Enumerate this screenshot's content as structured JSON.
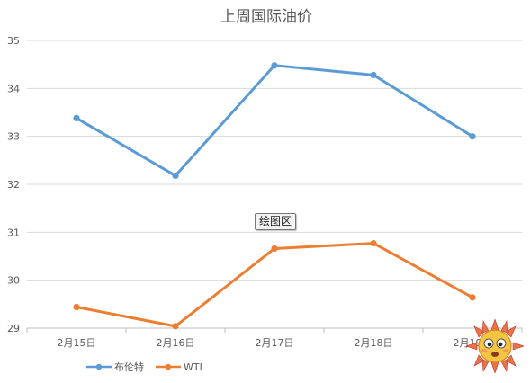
{
  "chart_data": {
    "type": "line",
    "title": "上周国际油价",
    "categories": [
      "2月15日",
      "2月16日",
      "2月17日",
      "2月18日",
      "2月19日"
    ],
    "series": [
      {
        "name": "布伦特",
        "color": "#5b9bd5",
        "values": [
          33.38,
          32.18,
          34.48,
          34.28,
          33.0
        ]
      },
      {
        "name": "WTI",
        "color": "#ed7d31",
        "values": [
          29.44,
          29.04,
          30.66,
          30.77,
          29.64
        ]
      }
    ],
    "ylim": [
      29,
      35
    ],
    "yticks": [
      29,
      30,
      31,
      32,
      33,
      34,
      35
    ],
    "grid": true,
    "legend_position": "bottom-left"
  },
  "tooltip": {
    "label": "绘图区"
  }
}
